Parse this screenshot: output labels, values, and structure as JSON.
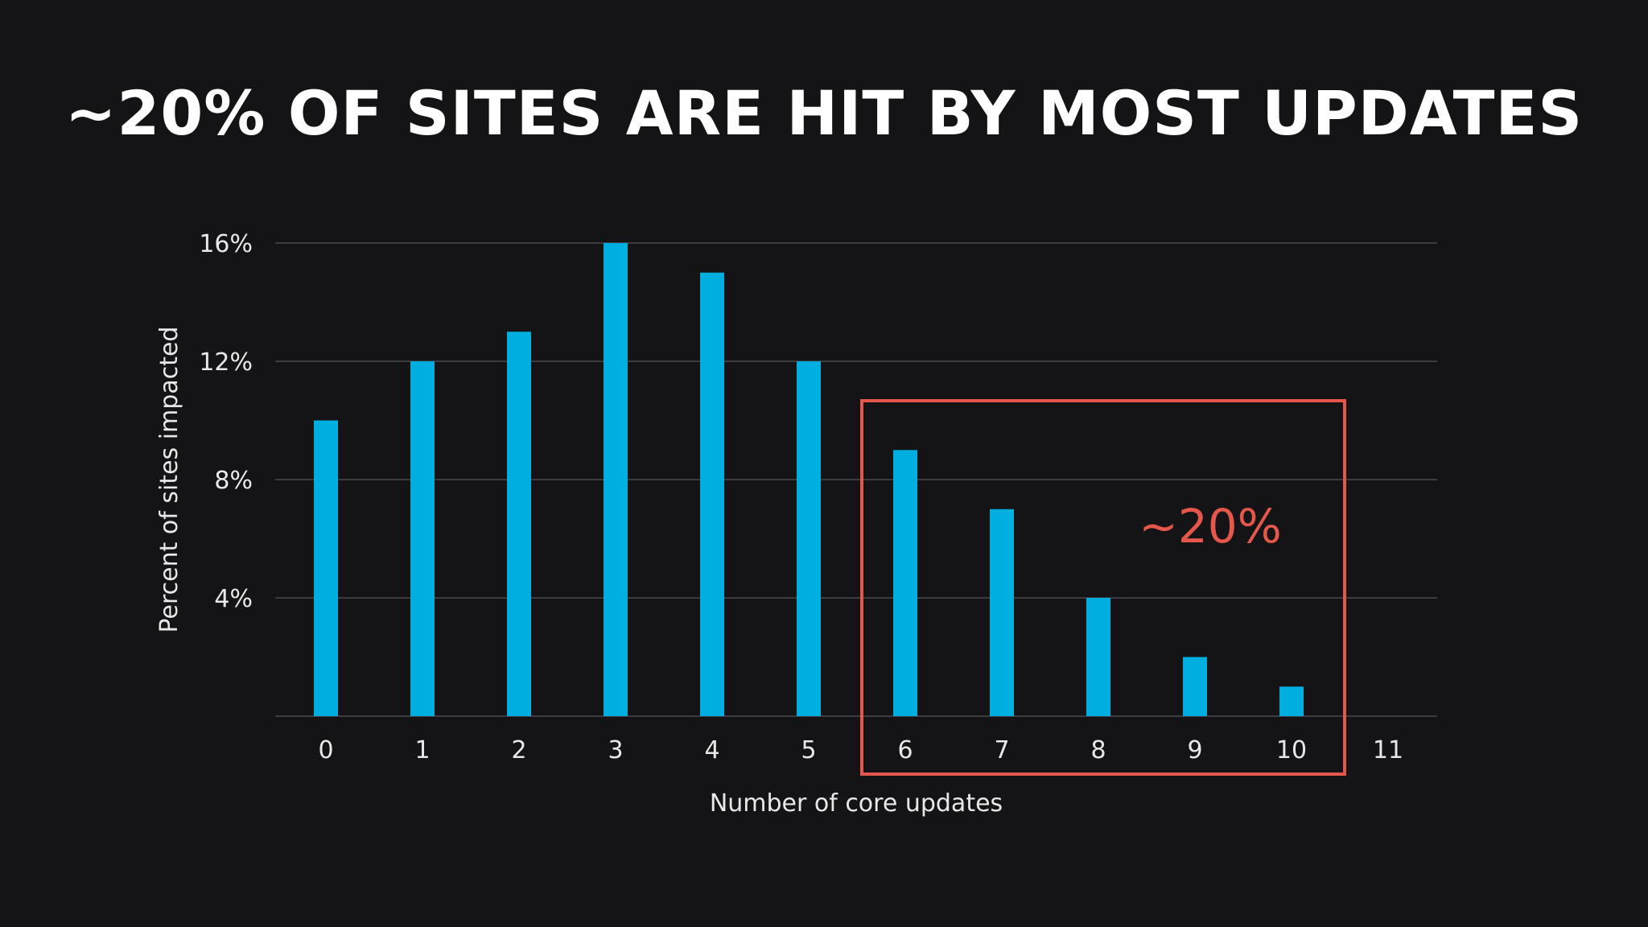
{
  "slide": {
    "title": "~20% OF SITES ARE HIT BY MOST UPDATES"
  },
  "colors": {
    "background": "#141416",
    "bar": "#00aee0",
    "grid": "#4a4a4e",
    "highlight": "#e4574a",
    "text": "#e8e8e8"
  },
  "chart_data": {
    "type": "bar",
    "title": "~20% OF SITES ARE HIT BY MOST UPDATES",
    "xlabel": "Number of core updates",
    "ylabel": "Percent of sites impacted",
    "categories": [
      "0",
      "1",
      "2",
      "3",
      "4",
      "5",
      "6",
      "7",
      "8",
      "9",
      "10",
      "11"
    ],
    "values": [
      10,
      12,
      13,
      16,
      15,
      12,
      9,
      7,
      4,
      2,
      1,
      0
    ],
    "ylim": [
      0,
      16
    ],
    "yticks": [
      4,
      8,
      12,
      16
    ],
    "ytick_labels": [
      "4%",
      "8%",
      "12%",
      "16%"
    ],
    "grid": true,
    "legend": "none",
    "annotation": {
      "label": "~20%",
      "from_category": "6",
      "to_category": "10"
    }
  }
}
